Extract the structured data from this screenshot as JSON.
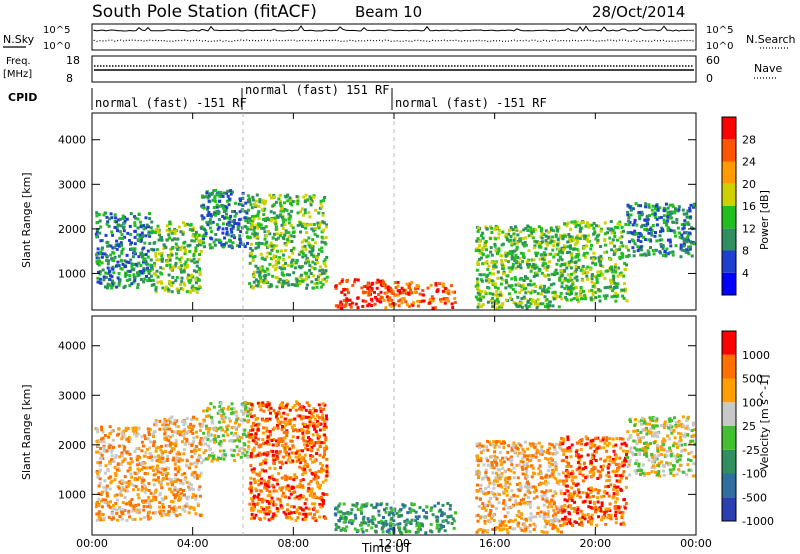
{
  "header": {
    "station": "South Pole Station (fitACF)",
    "beam": "Beam 10",
    "date": "28/Oct/2014"
  },
  "top_panels": {
    "nsky_label": "N.Sky",
    "nsky_ticks": [
      "10^5",
      "10^0"
    ],
    "nsearch_label": "N.Search",
    "nsearch_ticks": [
      "10^5",
      "10^0"
    ],
    "freq_label": "Freq.",
    "freq_unit": "[MHz]",
    "freq_ticks": [
      "18",
      "8"
    ],
    "nave_label": "Nave",
    "nave_ticks": [
      "60",
      "0"
    ],
    "cpid_label": "CPID",
    "cpid_segments": [
      {
        "label": "normal (fast) -151 RF",
        "start_h": 0,
        "end_h": 6
      },
      {
        "label": "normal (fast) 151 RF",
        "start_h": 6,
        "end_h": 12
      },
      {
        "label": "normal (fast) -151 RF",
        "start_h": 12,
        "end_h": 24
      }
    ]
  },
  "chart_data": [
    {
      "type": "heatmap",
      "title": "",
      "xlabel": "Time UT",
      "ylabel": "Slant Range [km]",
      "xlim": [
        0,
        24
      ],
      "ylim": [
        180,
        4600
      ],
      "x_ticks": [
        "00:00",
        "04:00",
        "08:00",
        "12:00",
        "16:00",
        "20:00",
        "00:00"
      ],
      "y_ticks": [
        "1000",
        "2000",
        "3000",
        "4000"
      ],
      "y_tick_values": [
        1000,
        2000,
        3000,
        4000
      ],
      "colorbar": {
        "label": "Power [dB]",
        "ticks": [
          "4",
          "8",
          "12",
          "16",
          "20",
          "24",
          "28"
        ],
        "colors": [
          "#0000ff",
          "#1f3fd1",
          "#2f8f5f",
          "#1fbf1f",
          "#cfd000",
          "#ff9a00",
          "#ff5500",
          "#ff0000"
        ]
      },
      "regions": [
        {
          "x0": 0.1,
          "x1": 2.4,
          "y0": 700,
          "y1": 2400,
          "level": 2
        },
        {
          "x0": 2.4,
          "x1": 4.3,
          "y0": 600,
          "y1": 2200,
          "level": 3
        },
        {
          "x0": 4.3,
          "x1": 6.2,
          "y0": 1600,
          "y1": 2900,
          "level": 2
        },
        {
          "x0": 6.2,
          "x1": 9.3,
          "y0": 700,
          "y1": 2800,
          "level": 3
        },
        {
          "x0": 9.6,
          "x1": 11.5,
          "y0": 250,
          "y1": 900,
          "level": 7
        },
        {
          "x0": 11.5,
          "x1": 14.4,
          "y0": 250,
          "y1": 850,
          "level": 6
        },
        {
          "x0": 15.2,
          "x1": 18.6,
          "y0": 250,
          "y1": 2100,
          "level": 3
        },
        {
          "x0": 18.6,
          "x1": 21.2,
          "y0": 400,
          "y1": 2200,
          "level": 3
        },
        {
          "x0": 21.2,
          "x1": 23.9,
          "y0": 1400,
          "y1": 2600,
          "level": 2
        }
      ]
    },
    {
      "type": "heatmap",
      "title": "",
      "xlabel": "Time UT",
      "ylabel": "Slant Range [km]",
      "xlim": [
        0,
        24
      ],
      "ylim": [
        180,
        4600
      ],
      "x_ticks": [
        "00:00",
        "04:00",
        "08:00",
        "12:00",
        "16:00",
        "20:00",
        "00:00"
      ],
      "y_ticks": [
        "1000",
        "2000",
        "3000",
        "4000"
      ],
      "y_tick_values": [
        1000,
        2000,
        3000,
        4000
      ],
      "colorbar": {
        "label": "Velocity [m s^-1]",
        "ticks": [
          "1000",
          "500",
          "100",
          "25",
          "-25",
          "-100",
          "-500",
          "-1000"
        ],
        "colors": [
          "#2a3fb0",
          "#2e6f9f",
          "#2f8f5f",
          "#40c030",
          "#c8c8c8",
          "#ffa000",
          "#ff7000",
          "#ff0000"
        ]
      },
      "regions": [
        {
          "x0": 0.1,
          "x1": 2.4,
          "y0": 500,
          "y1": 2400,
          "level": 5
        },
        {
          "x0": 2.4,
          "x1": 4.3,
          "y0": 600,
          "y1": 2600,
          "level": 5
        },
        {
          "x0": 4.3,
          "x1": 6.2,
          "y0": 1700,
          "y1": 2900,
          "level": 4
        },
        {
          "x0": 6.2,
          "x1": 9.3,
          "y0": 500,
          "y1": 2900,
          "level": 6
        },
        {
          "x0": 9.6,
          "x1": 11.5,
          "y0": 250,
          "y1": 850,
          "level": 2
        },
        {
          "x0": 11.5,
          "x1": 14.4,
          "y0": 250,
          "y1": 850,
          "level": 2
        },
        {
          "x0": 15.2,
          "x1": 18.6,
          "y0": 250,
          "y1": 2100,
          "level": 5
        },
        {
          "x0": 18.6,
          "x1": 21.2,
          "y0": 400,
          "y1": 2200,
          "level": 6
        },
        {
          "x0": 21.2,
          "x1": 23.9,
          "y0": 1400,
          "y1": 2600,
          "level": 4
        }
      ]
    }
  ]
}
